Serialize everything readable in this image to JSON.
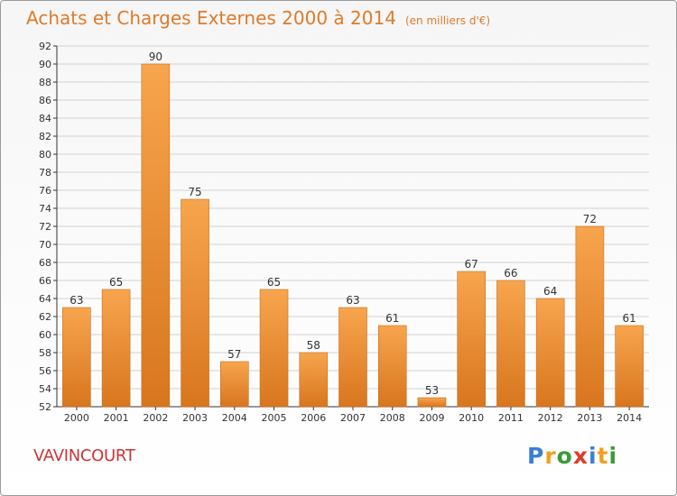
{
  "header": {
    "title": "Achats et Charges Externes 2000 à 2014",
    "subtitle": "(en milliers d'€)"
  },
  "commune": "VAVINCOURT",
  "logo": {
    "text": "Proxiti",
    "letters": [
      {
        "ch": "P",
        "color": "#3a7fd0"
      },
      {
        "ch": "r",
        "color": "#f0a020"
      },
      {
        "ch": "o",
        "color": "#3a9a3a"
      },
      {
        "ch": "x",
        "color": "#e23a2a"
      },
      {
        "ch": "i",
        "color": "#3a7fd0"
      },
      {
        "ch": "t",
        "color": "#f0a020"
      },
      {
        "ch": "i",
        "color": "#3a9a3a"
      }
    ]
  },
  "colors": {
    "bar_light": "#f7a54e",
    "bar_dark": "#d8761e",
    "title": "#e07a2a",
    "commune": "#cc3535"
  },
  "chart_data": {
    "type": "bar",
    "categories": [
      "2000",
      "2001",
      "2002",
      "2003",
      "2004",
      "2005",
      "2006",
      "2007",
      "2008",
      "2009",
      "2010",
      "2011",
      "2012",
      "2013",
      "2014"
    ],
    "values": [
      63,
      65,
      90,
      75,
      57,
      65,
      58,
      63,
      61,
      53,
      67,
      66,
      64,
      72,
      61
    ],
    "ylim": [
      52,
      92
    ],
    "yticks": [
      52,
      54,
      56,
      58,
      60,
      62,
      64,
      66,
      68,
      70,
      72,
      74,
      76,
      78,
      80,
      82,
      84,
      86,
      88,
      90,
      92
    ],
    "grid": true,
    "data_labels": true
  }
}
